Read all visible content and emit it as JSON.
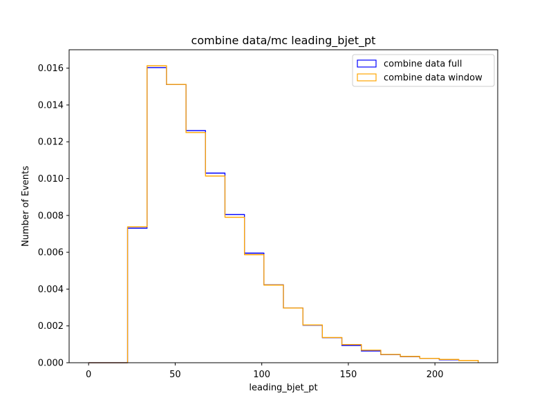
{
  "chart_data": {
    "type": "histogram",
    "title": "combine data/mc leading_bjet_pt",
    "xlabel": "leading_bjet_pt",
    "ylabel": "Number of Events",
    "xlim": [
      -11.25,
      236.25
    ],
    "ylim": [
      0,
      0.017
    ],
    "xticks": [
      0,
      50,
      100,
      150,
      200
    ],
    "yticks": [
      0.0,
      0.002,
      0.004,
      0.006,
      0.008,
      0.01,
      0.012,
      0.014,
      0.016
    ],
    "ytick_labels": [
      "0.000",
      "0.002",
      "0.004",
      "0.006",
      "0.008",
      "0.010",
      "0.012",
      "0.014",
      "0.016"
    ],
    "bin_edges": [
      0,
      11.25,
      22.5,
      33.75,
      45,
      56.25,
      67.5,
      78.75,
      90,
      101.25,
      112.5,
      123.75,
      135,
      146.25,
      157.5,
      168.75,
      180,
      191.25,
      202.5,
      213.75,
      225
    ],
    "legend_position": "upper right",
    "series": [
      {
        "name": "combine data full",
        "color": "#0000ff",
        "values": [
          0,
          0,
          0.00731,
          0.01603,
          0.01511,
          0.01261,
          0.0103,
          0.00805,
          0.00595,
          0.00423,
          0.00297,
          0.00204,
          0.00136,
          0.00094,
          0.00064,
          0.00044,
          0.00033,
          0.00024,
          0.00016,
          0.00012
        ]
      },
      {
        "name": "combine data window",
        "color": "#ffa500",
        "values": [
          0,
          0,
          0.00738,
          0.01613,
          0.01512,
          0.0125,
          0.01014,
          0.0079,
          0.00587,
          0.00422,
          0.00297,
          0.00205,
          0.00137,
          0.00099,
          0.00068,
          0.00045,
          0.00034,
          0.00024,
          0.00018,
          0.00012
        ]
      }
    ]
  }
}
